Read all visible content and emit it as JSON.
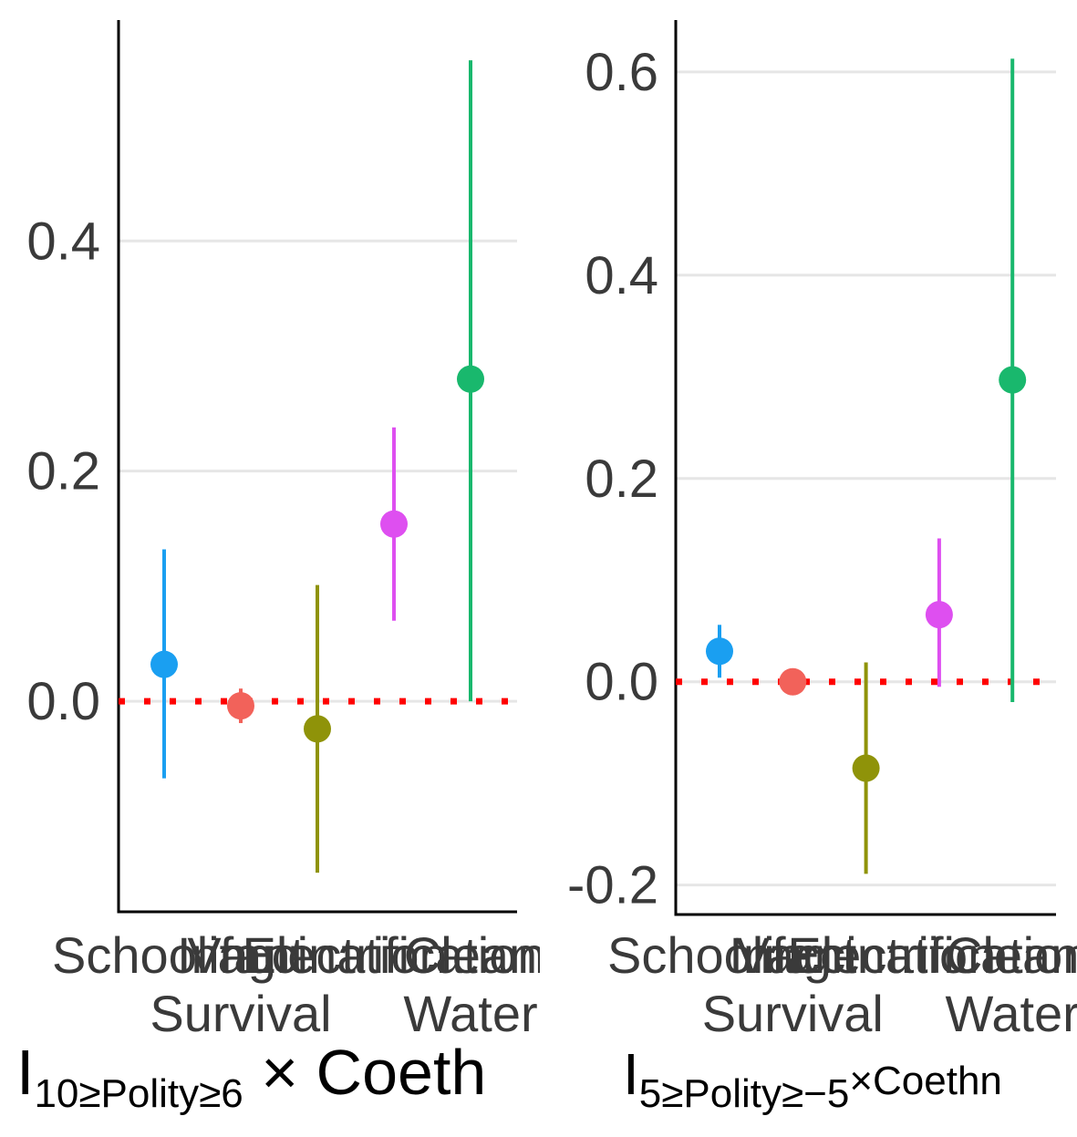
{
  "chart_data": [
    {
      "type": "errorbar",
      "categories": [
        "Schooling",
        "Infant Survival",
        "Vaccination",
        "Electrification",
        "Clean Water"
      ],
      "category_label_lines": [
        [
          "Schooling"
        ],
        [
          "Infant",
          "Survival"
        ],
        [
          "Vaccination"
        ],
        [
          "Electrification"
        ],
        [
          "Clean",
          "Water"
        ]
      ],
      "estimates": [
        0.032,
        -0.004,
        -0.024,
        0.154,
        0.28
      ],
      "ci_low": [
        -0.067,
        -0.019,
        -0.149,
        0.07,
        0.0
      ],
      "ci_high": [
        0.132,
        0.011,
        0.101,
        0.238,
        0.557
      ],
      "colors": [
        "#1a9ff1",
        "#f2625a",
        "#8f9309",
        "#de4ff0",
        "#19b86d"
      ],
      "reference_line": {
        "y": 0,
        "color": "#ff0000",
        "style": "dotted"
      },
      "yticks": [
        0.0,
        0.2,
        0.4
      ],
      "ytick_labels": [
        "0.0",
        "0.2",
        "0.4"
      ],
      "ylim": [
        -0.183,
        0.592
      ],
      "xlabel_parts": {
        "base": "I",
        "subscript": "10≥Polity≥6",
        "rest": " × Coeth"
      },
      "grid": true
    },
    {
      "type": "errorbar",
      "categories": [
        "Schooling",
        "Infant Survival",
        "Vaccination",
        "Electrification",
        "Clean Water"
      ],
      "category_label_lines": [
        [
          "Schooling"
        ],
        [
          "Infant",
          "Survival"
        ],
        [
          "Vaccination"
        ],
        [
          "Electrification"
        ],
        [
          "Clean",
          "Water"
        ]
      ],
      "estimates": [
        0.03,
        0.0,
        -0.085,
        0.066,
        0.297
      ],
      "ci_low": [
        0.004,
        0.0,
        -0.189,
        -0.005,
        -0.02
      ],
      "ci_high": [
        0.056,
        0.0,
        0.019,
        0.141,
        0.613
      ],
      "colors": [
        "#1a9ff1",
        "#f2625a",
        "#8f9309",
        "#de4ff0",
        "#19b86d"
      ],
      "reference_line": {
        "y": 0,
        "color": "#ff0000",
        "style": "dotted"
      },
      "yticks": [
        -0.2,
        0.0,
        0.2,
        0.4,
        0.6
      ],
      "ytick_labels": [
        "-0.2",
        "0.0",
        "0.2",
        "0.4",
        "0.6"
      ],
      "ylim": [
        -0.229,
        0.651
      ],
      "xlabel_parts": {
        "base": "I",
        "subscript": "5≥Polity≥−5",
        "rest": "×Coethn"
      },
      "grid": true
    }
  ]
}
